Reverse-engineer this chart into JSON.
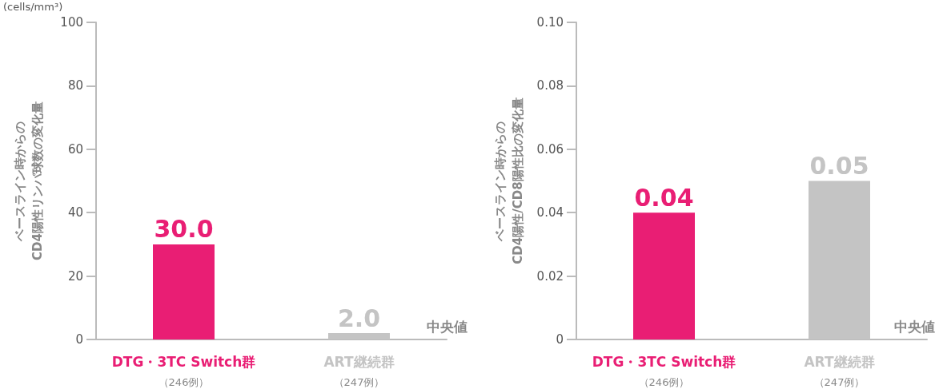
{
  "chart_data": [
    {
      "type": "bar",
      "ylabel": "ベースライン時からの\nCD4陽性リンパ球数の変化量",
      "categories": [
        "DTG・3TC Switch群（246例）",
        "ART継続群（247例）"
      ],
      "values": [
        30.0,
        2.0
      ],
      "value_labels": [
        "30.0",
        "2.0"
      ],
      "colors": [
        "#e91e74",
        "#c4c4c4"
      ],
      "ylim": [
        0,
        100
      ],
      "yticks": [
        0,
        20,
        40,
        60,
        80,
        100
      ],
      "grid": false,
      "annotations": [
        "(cells/mm³)",
        "中央値"
      ]
    },
    {
      "type": "bar",
      "ylabel": "ベースライン時からの\nCD4陽性/CD8陽性比の変化量",
      "categories": [
        "DTG・3TC Switch群（246例）",
        "ART継続群（247例）"
      ],
      "values": [
        0.04,
        0.05
      ],
      "value_labels": [
        "0.04",
        "0.05"
      ],
      "colors": [
        "#e91e74",
        "#c4c4c4"
      ],
      "ylim": [
        0,
        0.1
      ],
      "yticks": [
        0,
        0.02,
        0.04,
        0.06,
        0.08,
        {
          "value": 0.1,
          "label": "0.10"
        }
      ],
      "grid": false,
      "annotations": [
        "中央値"
      ]
    }
  ]
}
